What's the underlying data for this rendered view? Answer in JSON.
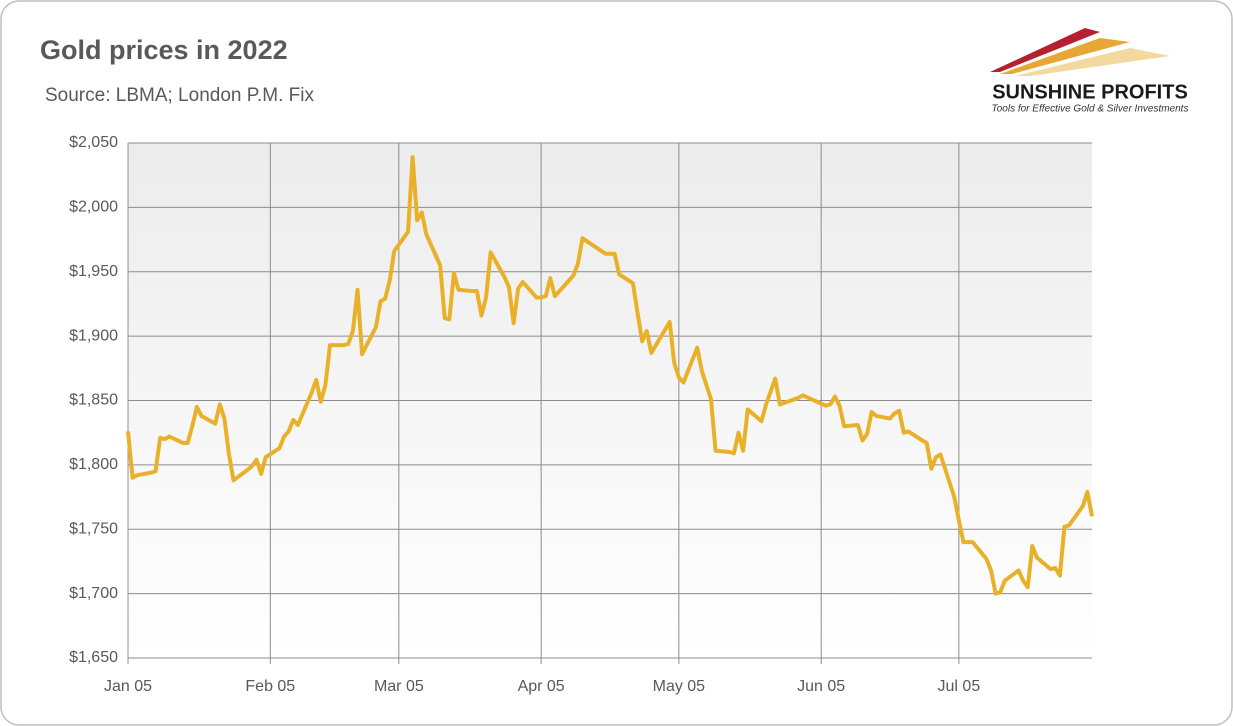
{
  "chart_data": {
    "type": "line",
    "title": "Gold prices in 2022",
    "subtitle": "Source: LBMA; London P.M. Fix",
    "logo_title": "SUNSHINE PROFITS",
    "logo_subtitle": "Tools for Effective Gold & Silver Investments",
    "color": "#e9b12a",
    "grid": true,
    "x": [
      "01-05",
      "01-06",
      "01-07",
      "01-10",
      "01-11",
      "01-12",
      "01-13",
      "01-14",
      "01-17",
      "01-18",
      "01-19",
      "01-20",
      "01-21",
      "01-24",
      "01-25",
      "01-26",
      "01-27",
      "01-28",
      "01-31",
      "02-01",
      "02-02",
      "02-03",
      "02-04",
      "02-07",
      "02-08",
      "02-09",
      "02-10",
      "02-11",
      "02-14",
      "02-15",
      "02-16",
      "02-17",
      "02-18",
      "02-21",
      "02-22",
      "02-23",
      "02-24",
      "02-25",
      "02-28",
      "03-01",
      "03-02",
      "03-03",
      "03-04",
      "03-07",
      "03-08",
      "03-09",
      "03-10",
      "03-11",
      "03-14",
      "03-15",
      "03-16",
      "03-17",
      "03-18",
      "03-21",
      "03-22",
      "03-23",
      "03-24",
      "03-25",
      "03-28",
      "03-29",
      "03-30",
      "03-31",
      "04-01",
      "04-04",
      "04-05",
      "04-06",
      "04-07",
      "04-08",
      "04-11",
      "04-12",
      "04-13",
      "04-14",
      "04-19",
      "04-20",
      "04-21",
      "04-22",
      "04-25",
      "04-26",
      "04-27",
      "04-28",
      "04-29",
      "05-03",
      "05-04",
      "05-05",
      "05-06",
      "05-09",
      "05-10",
      "05-11",
      "05-12",
      "05-13",
      "05-16",
      "05-17",
      "05-18",
      "05-19",
      "05-20",
      "05-23",
      "05-24",
      "05-25",
      "05-26",
      "05-27",
      "05-31",
      "06-01",
      "06-06",
      "06-07",
      "06-08",
      "06-09",
      "06-10",
      "06-13",
      "06-14",
      "06-15",
      "06-16",
      "06-17",
      "06-20",
      "06-21",
      "06-22",
      "06-23",
      "06-24",
      "06-27",
      "06-28",
      "06-29",
      "06-30",
      "07-01",
      "07-04",
      "07-05",
      "07-06",
      "07-07",
      "07-08",
      "07-11",
      "07-12",
      "07-13",
      "07-14",
      "07-15",
      "07-18",
      "07-19",
      "07-20",
      "07-21",
      "07-22",
      "07-25",
      "07-26",
      "07-27",
      "07-28",
      "07-29",
      "08-01",
      "08-02",
      "08-03"
    ],
    "values": [
      1826,
      1790,
      1792,
      1794,
      1795,
      1821,
      1820,
      1822,
      1817,
      1817,
      1830,
      1845,
      1838,
      1832,
      1847,
      1836,
      1808,
      1788,
      1796,
      1799,
      1804,
      1793,
      1806,
      1813,
      1822,
      1826,
      1835,
      1831,
      1856,
      1866,
      1849,
      1862,
      1893,
      1893,
      1894,
      1904,
      1936,
      1886,
      1907,
      1927,
      1929,
      1943,
      1966,
      1981,
      2039,
      1990,
      1996,
      1979,
      1955,
      1914,
      1913,
      1949,
      1936,
      1935,
      1935,
      1916,
      1930,
      1965,
      1946,
      1938,
      1910,
      1937,
      1942,
      1930,
      1930,
      1931,
      1945,
      1931,
      1943,
      1947,
      1956,
      1976,
      1964,
      1964,
      1964,
      1948,
      1941,
      1918,
      1896,
      1904,
      1887,
      1911,
      1879,
      1868,
      1864,
      1891,
      1873,
      1862,
      1851,
      1811,
      1810,
      1809,
      1825,
      1811,
      1843,
      1834,
      1847,
      1857,
      1867,
      1847,
      1852,
      1854,
      1846,
      1847,
      1853,
      1846,
      1830,
      1831,
      1819,
      1824,
      1841,
      1838,
      1836,
      1840,
      1842,
      1825,
      1826,
      1819,
      1817,
      1797,
      1806,
      1808,
      1775,
      1757,
      1740,
      1740,
      1740,
      1727,
      1718,
      1700,
      1701,
      1710,
      1718,
      1710,
      1705,
      1737,
      1728,
      1719,
      1720,
      1714,
      1752,
      1753,
      1768,
      1779,
      1760
    ],
    "xlim": [
      "01-05",
      "08-03"
    ],
    "xticks": [
      {
        "value": "01-05",
        "label": "Jan 05"
      },
      {
        "value": "02-05",
        "label": "Feb 05"
      },
      {
        "value": "03-05",
        "label": "Mar 05"
      },
      {
        "value": "04-05",
        "label": "Apr 05"
      },
      {
        "value": "05-05",
        "label": "May 05"
      },
      {
        "value": "06-05",
        "label": "Jun 05"
      },
      {
        "value": "07-05",
        "label": "Jul 05"
      }
    ],
    "ylim": [
      1650,
      2050
    ],
    "yticks": [
      {
        "value": 1650,
        "label": "$1,650"
      },
      {
        "value": 1700,
        "label": "$1,700"
      },
      {
        "value": 1750,
        "label": "$1,750"
      },
      {
        "value": 1800,
        "label": "$1,800"
      },
      {
        "value": 1850,
        "label": "$1,850"
      },
      {
        "value": 1900,
        "label": "$1,900"
      },
      {
        "value": 1950,
        "label": "$1,950"
      },
      {
        "value": 2000,
        "label": "$2,000"
      },
      {
        "value": 2050,
        "label": "$2,050"
      }
    ]
  }
}
